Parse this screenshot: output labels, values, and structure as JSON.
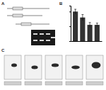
{
  "figure": {
    "panels": [
      {
        "label": "A"
      },
      {
        "label": "B"
      },
      {
        "label": "C"
      }
    ]
  },
  "chart_data": {
    "type": "bar",
    "categories": [
      null,
      null,
      null,
      null
    ],
    "values": [
      1.0,
      0.8,
      0.55,
      0.55
    ],
    "errors": [
      0.08,
      0.1,
      0.08,
      0.06
    ],
    "color": "#333333",
    "ylim": [
      0,
      1.2
    ],
    "yticks": [
      0,
      0.5,
      1
    ],
    "tick_labels": false
  }
}
